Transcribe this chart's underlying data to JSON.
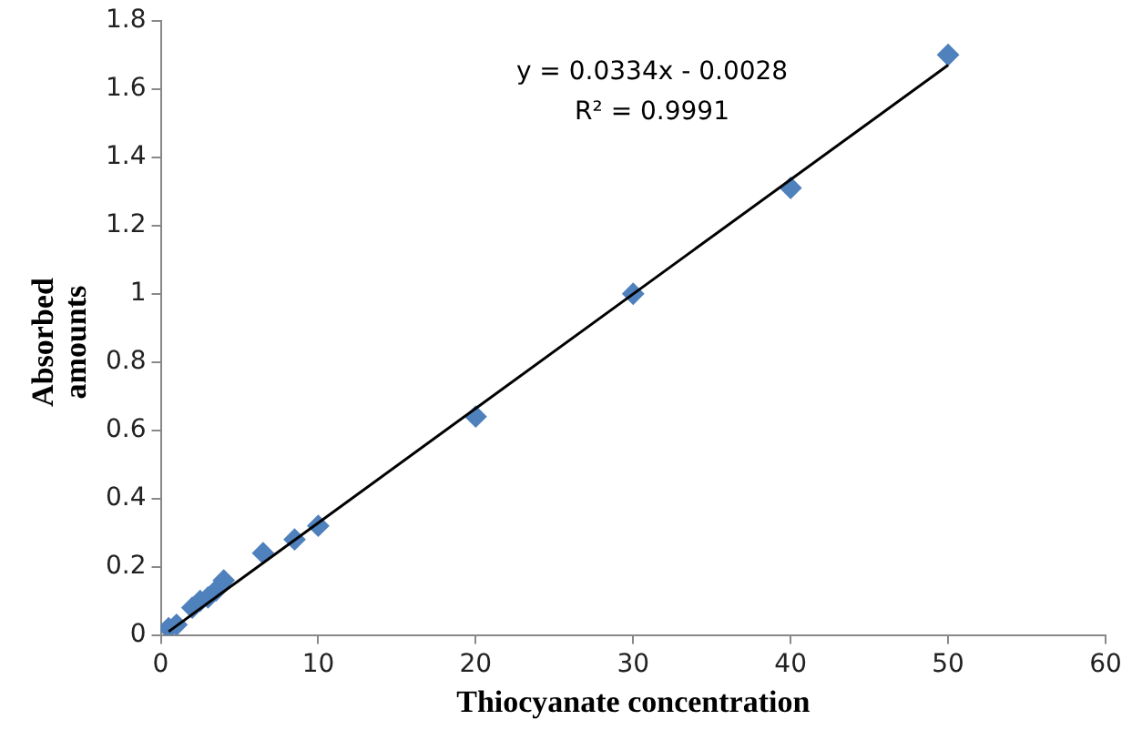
{
  "chart_data": {
    "type": "scatter",
    "xlabel": "Thiocyanate concentration",
    "ylabel": "Absorbed amounts",
    "xlim": [
      0,
      60
    ],
    "xticks": [
      0,
      10,
      20,
      30,
      40,
      50,
      60
    ],
    "ylim": [
      0,
      1.8
    ],
    "yticks": [
      0,
      0.2,
      0.4,
      0.6,
      0.8,
      1,
      1.2,
      1.4,
      1.6,
      1.8
    ],
    "grid": false,
    "legend": false,
    "marker": "diamond",
    "series": [
      {
        "type": "scatter",
        "color": "#4f81bd",
        "x": [
          0.5,
          1,
          2,
          2.5,
          3,
          3.5,
          4,
          6.5,
          8.5,
          10,
          20,
          30,
          40,
          50
        ],
        "values": [
          0.02,
          0.03,
          0.08,
          0.1,
          0.11,
          0.13,
          0.16,
          0.24,
          0.28,
          0.32,
          0.64,
          1.0,
          1.31,
          1.7
        ]
      },
      {
        "type": "line",
        "color": "#000000",
        "x": [
          0.5,
          50
        ],
        "values": [
          0.01,
          1.67
        ],
        "marker": "none"
      }
    ],
    "annotations": [
      "y = 0.0334x - 0.0028",
      "R² = 0.9991"
    ]
  }
}
